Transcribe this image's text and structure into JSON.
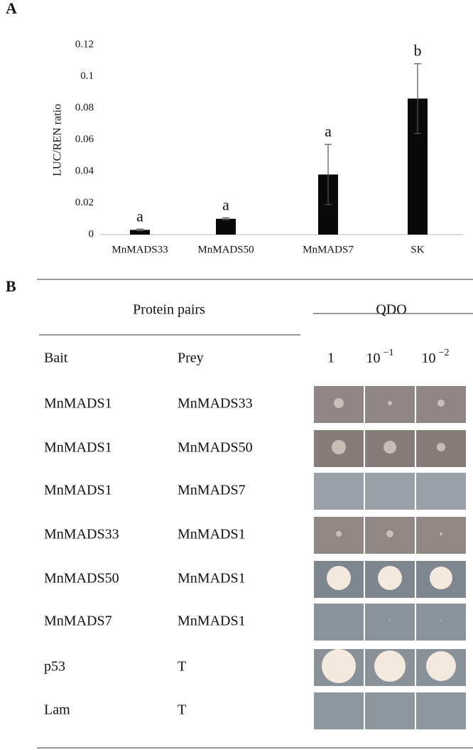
{
  "panels": [
    "A",
    "B"
  ],
  "chart_data": {
    "type": "bar",
    "ylabel": "LUC/REN ratio",
    "categories": [
      "MnMADS33",
      "MnMADS50",
      "MnMADS7",
      "SK"
    ],
    "values": [
      0.003,
      0.01,
      0.038,
      0.086
    ],
    "errors": [
      0.0005,
      0.0006,
      0.019,
      0.022
    ],
    "annotations": [
      "a",
      "a",
      "a",
      "b"
    ],
    "color": "#0a0a0a",
    "ylim": [
      0,
      0.12
    ],
    "yticks": [
      0,
      0.02,
      0.04,
      0.06,
      0.08,
      0.1,
      0.12
    ],
    "grid": false
  },
  "table": {
    "headers": [
      "Protein pairs",
      "QDO"
    ],
    "columns": [
      "Bait",
      "Prey",
      "1",
      {
        "base": "10",
        "sup": "−1"
      },
      {
        "base": "10",
        "sup": "−2"
      }
    ],
    "rows": [
      [
        "MnMADS1",
        "MnMADS33"
      ],
      [
        "MnMADS1",
        "MnMADS50"
      ],
      [
        "MnMADS1",
        "MnMADS7"
      ],
      [
        "MnMADS33",
        "MnMADS1"
      ],
      [
        "MnMADS50",
        "MnMADS1"
      ],
      [
        "MnMADS7",
        "MnMADS1"
      ],
      [
        "p53",
        "T"
      ],
      [
        "Lam",
        "T"
      ]
    ]
  }
}
